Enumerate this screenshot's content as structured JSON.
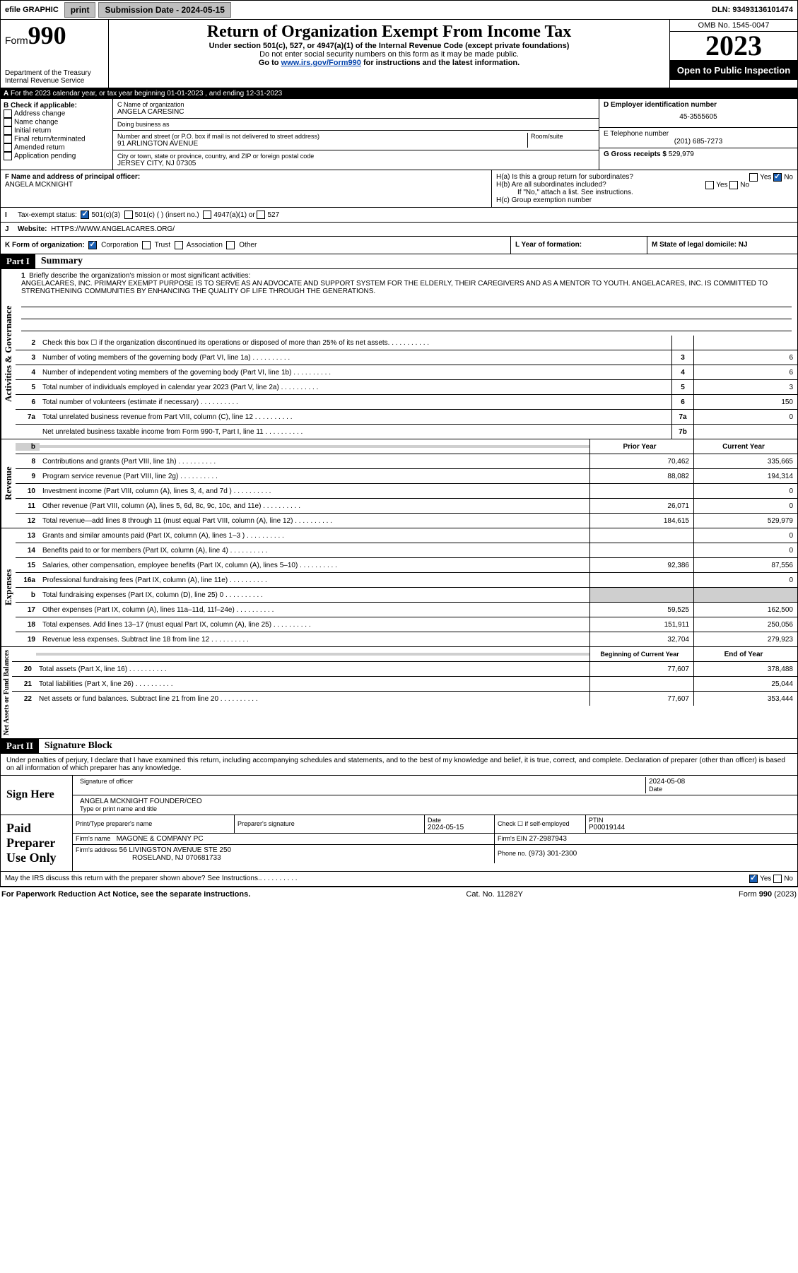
{
  "topbar": {
    "efile": "efile GRAPHIC",
    "print": "print",
    "sub_lbl": "Submission Date - 2024-05-15",
    "dln_lbl": "DLN: 93493136101474"
  },
  "header": {
    "form_word": "Form",
    "form_num": "990",
    "dept": "Department of the Treasury",
    "irs": "Internal Revenue Service",
    "title": "Return of Organization Exempt From Income Tax",
    "sub1": "Under section 501(c), 527, or 4947(a)(1) of the Internal Revenue Code (except private foundations)",
    "sub2": "Do not enter social security numbers on this form as it may be made public.",
    "sub3_pre": "Go to ",
    "sub3_link": "www.irs.gov/Form990",
    "sub3_post": " for instructions and the latest information.",
    "omb": "OMB No. 1545-0047",
    "year": "2023",
    "otp": "Open to Public Inspection"
  },
  "line_a": "For the 2023 calendar year, or tax year beginning 01-01-2023    , and ending 12-31-2023",
  "section_b": {
    "hdr": "B Check if applicable:",
    "items": [
      "Address change",
      "Name change",
      "Initial return",
      "Final return/terminated",
      "Amended return",
      "Application pending"
    ]
  },
  "section_c": {
    "name_lbl": "C Name of organization",
    "name": "ANGELA CARESINC",
    "dba_lbl": "Doing business as",
    "dba": "",
    "addr_lbl": "Number and street (or P.O. box if mail is not delivered to street address)",
    "addr": "91 ARLINGTON AVENUE",
    "room_lbl": "Room/suite",
    "city_lbl": "City or town, state or province, country, and ZIP or foreign postal code",
    "city": "JERSEY CITY, NJ  07305"
  },
  "section_d": {
    "lbl": "D Employer identification number",
    "val": "45-3555605"
  },
  "section_e": {
    "lbl": "E Telephone number",
    "val": "(201) 685-7273"
  },
  "section_g": {
    "lbl": "G Gross receipts $",
    "val": "529,979"
  },
  "section_f": {
    "lbl": "F Name and address of principal officer:",
    "val": "ANGELA MCKNIGHT"
  },
  "section_h": {
    "a": "H(a)  Is this a group return for subordinates?",
    "b": "H(b)  Are all subordinates included?",
    "b_note": "If \"No,\" attach a list. See instructions.",
    "c": "H(c)  Group exemption number",
    "yes": "Yes",
    "no": "No"
  },
  "section_i": {
    "lbl": "Tax-exempt status:",
    "o1": "501(c)(3)",
    "o2": "501(c) (  ) (insert no.)",
    "o3": "4947(a)(1) or",
    "o4": "527"
  },
  "section_j": {
    "lbl": "Website:",
    "val": "HTTPS://WWW.ANGELACARES.ORG/"
  },
  "section_k": {
    "lbl": "K Form of organization:",
    "o1": "Corporation",
    "o2": "Trust",
    "o3": "Association",
    "o4": "Other"
  },
  "section_l": {
    "lbl": "L Year of formation:",
    "val": ""
  },
  "section_m": {
    "lbl": "M State of legal domicile: NJ"
  },
  "part1": {
    "hdr": "Part I",
    "title": "Summary"
  },
  "mission": {
    "q": "Briefly describe the organization's mission or most significant activities:",
    "txt": "ANGELACARES, INC. PRIMARY EXEMPT PURPOSE IS TO SERVE AS AN ADVOCATE AND SUPPORT SYSTEM FOR THE ELDERLY, THEIR CAREGIVERS AND AS A MENTOR TO YOUTH. ANGELACARES, INC. IS COMMITTED TO STRENGTHENING COMMUNITIES BY ENHANCING THE QUALITY OF LIFE THROUGH THE GENERATIONS."
  },
  "gov_tab": "Activities & Governance",
  "rev_tab": "Revenue",
  "exp_tab": "Expenses",
  "net_tab": "Net Assets or Fund Balances",
  "lines_gov": [
    {
      "n": "2",
      "t": "Check this box  ☐  if the organization discontinued its operations or disposed of more than 25% of its net assets.",
      "b": "",
      "v": ""
    },
    {
      "n": "3",
      "t": "Number of voting members of the governing body (Part VI, line 1a)",
      "b": "3",
      "v": "6"
    },
    {
      "n": "4",
      "t": "Number of independent voting members of the governing body (Part VI, line 1b)",
      "b": "4",
      "v": "6"
    },
    {
      "n": "5",
      "t": "Total number of individuals employed in calendar year 2023 (Part V, line 2a)",
      "b": "5",
      "v": "3"
    },
    {
      "n": "6",
      "t": "Total number of volunteers (estimate if necessary)",
      "b": "6",
      "v": "150"
    },
    {
      "n": "7a",
      "t": "Total unrelated business revenue from Part VIII, column (C), line 12",
      "b": "7a",
      "v": "0"
    },
    {
      "n": "",
      "t": "Net unrelated business taxable income from Form 990-T, Part I, line 11",
      "b": "7b",
      "v": ""
    }
  ],
  "col_hdr": {
    "py": "Prior Year",
    "cy": "Current Year"
  },
  "lines_rev": [
    {
      "n": "8",
      "t": "Contributions and grants (Part VIII, line 1h)",
      "py": "70,462",
      "cy": "335,665"
    },
    {
      "n": "9",
      "t": "Program service revenue (Part VIII, line 2g)",
      "py": "88,082",
      "cy": "194,314"
    },
    {
      "n": "10",
      "t": "Investment income (Part VIII, column (A), lines 3, 4, and 7d )",
      "py": "",
      "cy": "0"
    },
    {
      "n": "11",
      "t": "Other revenue (Part VIII, column (A), lines 5, 6d, 8c, 9c, 10c, and 11e)",
      "py": "26,071",
      "cy": "0"
    },
    {
      "n": "12",
      "t": "Total revenue—add lines 8 through 11 (must equal Part VIII, column (A), line 12)",
      "py": "184,615",
      "cy": "529,979"
    }
  ],
  "lines_exp": [
    {
      "n": "13",
      "t": "Grants and similar amounts paid (Part IX, column (A), lines 1–3 )",
      "py": "",
      "cy": "0"
    },
    {
      "n": "14",
      "t": "Benefits paid to or for members (Part IX, column (A), line 4)",
      "py": "",
      "cy": "0"
    },
    {
      "n": "15",
      "t": "Salaries, other compensation, employee benefits (Part IX, column (A), lines 5–10)",
      "py": "92,386",
      "cy": "87,556"
    },
    {
      "n": "16a",
      "t": "Professional fundraising fees (Part IX, column (A), line 11e)",
      "py": "",
      "cy": "0"
    },
    {
      "n": "b",
      "t": "Total fundraising expenses (Part IX, column (D), line 25) 0",
      "py": "",
      "cy": "",
      "shade": true
    },
    {
      "n": "17",
      "t": "Other expenses (Part IX, column (A), lines 11a–11d, 11f–24e)",
      "py": "59,525",
      "cy": "162,500"
    },
    {
      "n": "18",
      "t": "Total expenses. Add lines 13–17 (must equal Part IX, column (A), line 25)",
      "py": "151,911",
      "cy": "250,056"
    },
    {
      "n": "19",
      "t": "Revenue less expenses. Subtract line 18 from line 12",
      "py": "32,704",
      "cy": "279,923"
    }
  ],
  "col_hdr2": {
    "py": "Beginning of Current Year",
    "cy": "End of Year"
  },
  "lines_net": [
    {
      "n": "20",
      "t": "Total assets (Part X, line 16)",
      "py": "77,607",
      "cy": "378,488"
    },
    {
      "n": "21",
      "t": "Total liabilities (Part X, line 26)",
      "py": "",
      "cy": "25,044"
    },
    {
      "n": "22",
      "t": "Net assets or fund balances. Subtract line 21 from line 20",
      "py": "77,607",
      "cy": "353,444"
    }
  ],
  "part2": {
    "hdr": "Part II",
    "title": "Signature Block"
  },
  "perjury": "Under penalties of perjury, I declare that I have examined this return, including accompanying schedules and statements, and to the best of my knowledge and belief, it is true, correct, and complete. Declaration of preparer (other than officer) is based on all information of which preparer has any knowledge.",
  "sign": {
    "here": "Sign Here",
    "sig_lbl": "Signature of officer",
    "date_lbl": "Date",
    "date": "2024-05-08",
    "name": "ANGELA MCKNIGHT FOUNDER/CEO",
    "type_lbl": "Type or print name and title"
  },
  "prep": {
    "use": "Paid Preparer Use Only",
    "name_lbl": "Print/Type preparer's name",
    "name": "",
    "sig_lbl": "Preparer's signature",
    "date_lbl": "Date",
    "date": "2024-05-15",
    "se_lbl": "Check ☐ if self-employed",
    "ptin_lbl": "PTIN",
    "ptin": "P00019144",
    "firm_lbl": "Firm's name",
    "firm": "MAGONE & COMPANY PC",
    "ein_lbl": "Firm's EIN",
    "ein": "27-2987943",
    "addr_lbl": "Firm's address",
    "addr": "56 LIVINGSTON AVENUE STE 250",
    "addr2": "ROSELAND, NJ  070681733",
    "phone_lbl": "Phone no.",
    "phone": "(973) 301-2300"
  },
  "discuss": "May the IRS discuss this return with the preparer shown above? See Instructions.",
  "footer": {
    "l": "For Paperwork Reduction Act Notice, see the separate instructions.",
    "c": "Cat. No. 11282Y",
    "r": "Form 990 (2023)"
  }
}
